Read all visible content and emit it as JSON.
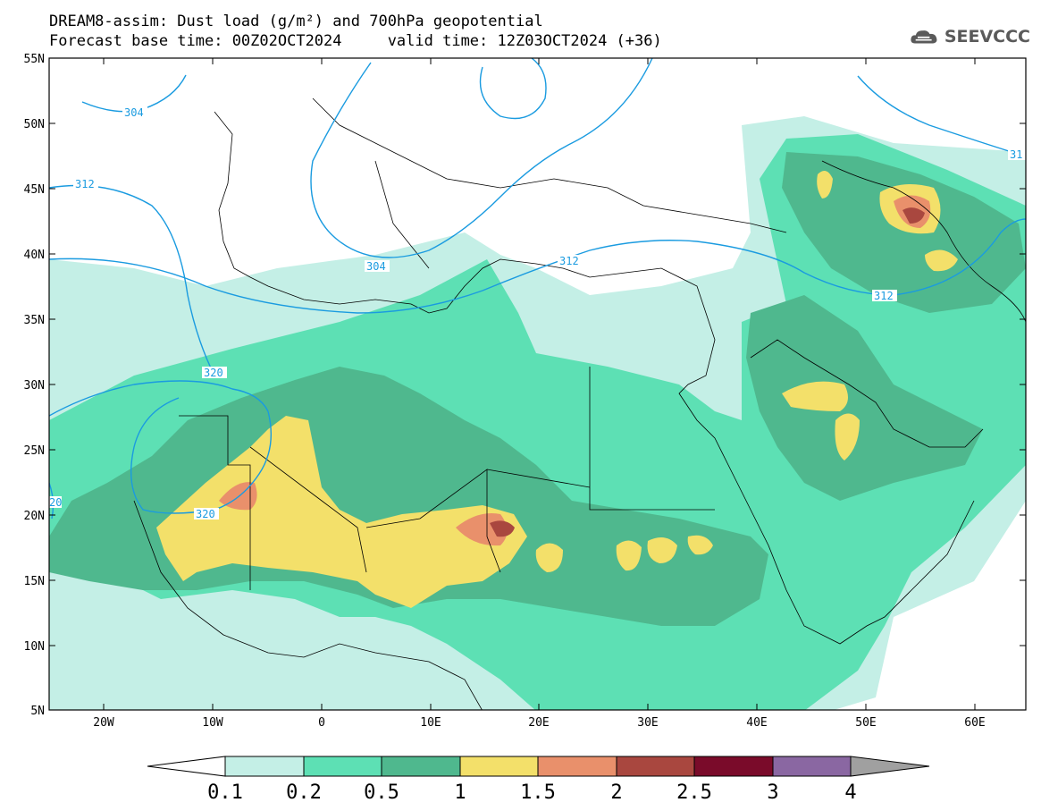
{
  "header": {
    "title_line1": "DREAM8-assim: Dust load (g/m²) and 700hPa geopotential",
    "title_line2": "Forecast base time: 00Z02OCT2024     valid time: 12Z03OCT2024 (+36)",
    "logo_text": "SEEVCCC"
  },
  "map": {
    "lat_labels": [
      "55N",
      "50N",
      "45N",
      "40N",
      "35N",
      "30N",
      "25N",
      "20N",
      "15N",
      "10N",
      "5N"
    ],
    "lon_labels": [
      "20W",
      "10W",
      "0",
      "10E",
      "20E",
      "30E",
      "40E",
      "50E",
      "60E"
    ],
    "contour_labels": [
      "304",
      "312",
      "304",
      "312",
      "312",
      "320",
      "320",
      "31",
      "312",
      "20",
      "31"
    ],
    "contour_color": "#1a9be0"
  },
  "colorbar": {
    "labels": [
      "0.1",
      "0.2",
      "0.5",
      "1",
      "1.5",
      "2",
      "2.5",
      "3",
      "4"
    ],
    "colors": [
      "#ffffff",
      "#c4efe6",
      "#5de0b4",
      "#4fb88e",
      "#f3e06a",
      "#e9906b",
      "#a9473f",
      "#7a0b2a",
      "#8a67a2",
      "#a0a0a0"
    ]
  }
}
